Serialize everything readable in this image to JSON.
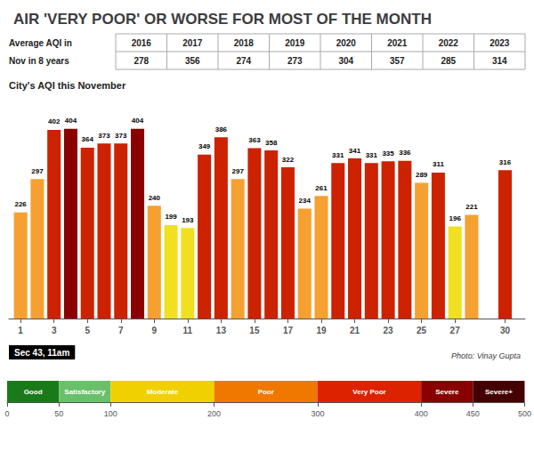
{
  "chart_data": [
    {
      "type": "bar",
      "title": "AIR 'VERY POOR' OR WORSE FOR MOST OF THE MONTH",
      "subtitle": "City's AQI this November",
      "x": [
        1,
        2,
        3,
        4,
        5,
        6,
        7,
        8,
        9,
        10,
        11,
        12,
        13,
        14,
        15,
        16,
        17,
        18,
        19,
        20,
        21,
        22,
        23,
        24,
        25,
        26,
        27,
        28,
        30
      ],
      "values": [
        226,
        297,
        402,
        404,
        364,
        373,
        373,
        404,
        240,
        199,
        193,
        349,
        386,
        297,
        363,
        358,
        322,
        234,
        261,
        331,
        341,
        331,
        335,
        336,
        289,
        311,
        196,
        221,
        316
      ],
      "colors": [
        "#f5a030",
        "#f5a030",
        "#cc2200",
        "#8B0000",
        "#cc2200",
        "#cc2200",
        "#cc2200",
        "#8B0000",
        "#f5a030",
        "#f0e020",
        "#f0e020",
        "#cc2200",
        "#cc2200",
        "#f5a030",
        "#cc2200",
        "#cc2200",
        "#cc2200",
        "#f5a030",
        "#f5a030",
        "#cc2200",
        "#cc2200",
        "#cc2200",
        "#cc2200",
        "#cc2200",
        "#f5a030",
        "#cc2200",
        "#f0e020",
        "#f5a030",
        "#cc2200"
      ],
      "xlim": [
        0.3,
        31.2
      ],
      "xticks": [
        1,
        3,
        5,
        7,
        9,
        11,
        13,
        15,
        17,
        19,
        21,
        23,
        25,
        27,
        30
      ],
      "ylim": [
        0,
        470
      ],
      "data_labels": true,
      "tick_labels": "x",
      "grid": false,
      "annotations": [
        "Photo: Vinay Gupta",
        "Sec 43, 11am"
      ]
    },
    {
      "type": "table",
      "annotations": [
        "Average AQI in",
        "Nov in 8 years"
      ],
      "categories": [
        "2016",
        "2017",
        "2018",
        "2019",
        "2020",
        "2021",
        "2022",
        "2023"
      ],
      "values": [
        278,
        356,
        274,
        273,
        304,
        357,
        285,
        314
      ]
    },
    {
      "type": "bar",
      "orientation": "horizontal",
      "stacked": true,
      "categories": [
        null
      ],
      "series": [
        {
          "name": "Good",
          "color": "#1a7a1a",
          "values": [
            50
          ]
        },
        {
          "name": "Satisfactory",
          "color": "#6abf6a",
          "values": [
            50
          ]
        },
        {
          "name": "Moderate",
          "color": "#f0d000",
          "values": [
            100
          ]
        },
        {
          "name": "Poor",
          "color": "#f07800",
          "values": [
            100
          ]
        },
        {
          "name": "Very Poor",
          "color": "#dd2200",
          "values": [
            100
          ]
        },
        {
          "name": "Severe",
          "color": "#880000",
          "values": [
            50
          ]
        },
        {
          "name": "Severe+",
          "color": "#440000",
          "values": [
            50
          ]
        }
      ],
      "xlim": [
        0,
        500
      ],
      "xticks": [
        0,
        50,
        100,
        200,
        300,
        400,
        450,
        500
      ],
      "tick_labels": "x",
      "grid": false
    }
  ]
}
